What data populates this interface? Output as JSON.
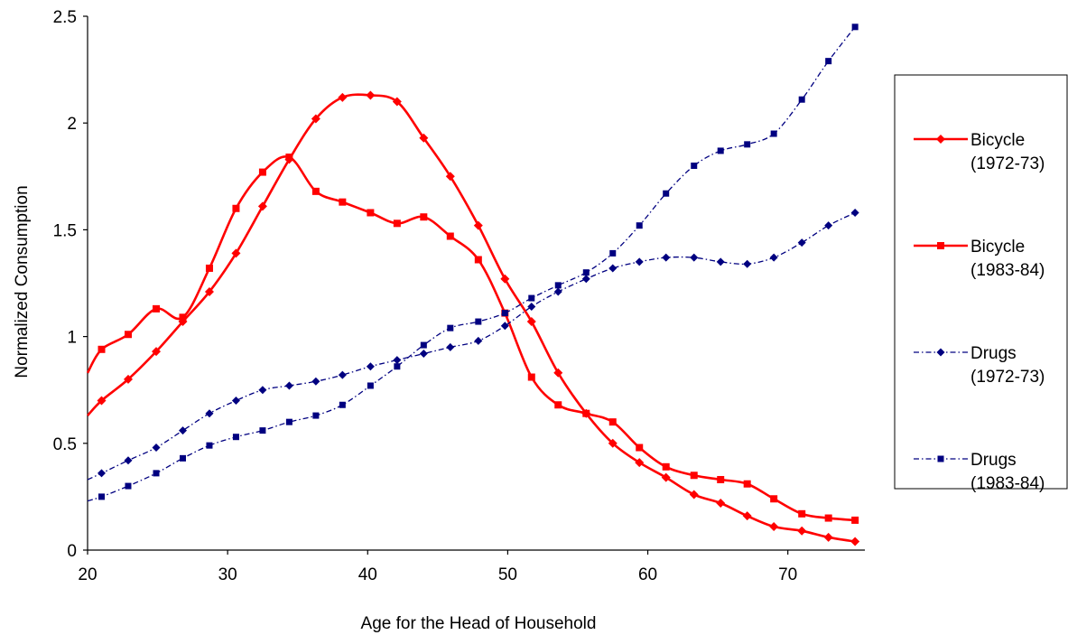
{
  "chart_data": {
    "type": "line",
    "title": "",
    "xlabel": "Age for the Head of Household",
    "ylabel": "Normalized Consumption",
    "xlim": [
      20,
      75.5
    ],
    "ylim": [
      0,
      2.5
    ],
    "x_ticks": [
      20,
      30,
      40,
      50,
      60,
      70
    ],
    "y_ticks": [
      0,
      0.5,
      1,
      1.5,
      2,
      2.5
    ],
    "x_tick_labels": [
      "20",
      "30",
      "40",
      "50",
      "60",
      "70"
    ],
    "y_tick_labels": [
      "0",
      "0.5",
      "1",
      "1.5",
      "2",
      "2.5"
    ],
    "grid": false,
    "legend_position": "right",
    "series": [
      {
        "name": "Bicycle (1972-73)",
        "legend_lines": [
          "Bicycle",
          "(1972-73)"
        ],
        "color": "#ff0000",
        "style": "solid",
        "marker": "diamond",
        "start": [
          20,
          0.63
        ],
        "x": [
          21,
          22.9,
          24.9,
          26.8,
          28.7,
          30.6,
          32.5,
          34.4,
          36.3,
          38.2,
          40.2,
          42.1,
          44,
          45.9,
          47.9,
          49.8,
          51.7,
          53.6,
          55.6,
          57.5,
          59.4,
          61.3,
          63.3,
          65.2,
          67.1,
          69,
          71,
          72.9,
          74.8
        ],
        "y": [
          0.7,
          0.8,
          0.93,
          1.07,
          1.21,
          1.39,
          1.61,
          1.83,
          2.02,
          2.12,
          2.13,
          2.1,
          1.93,
          1.75,
          1.52,
          1.27,
          1.07,
          0.83,
          0.64,
          0.5,
          0.41,
          0.34,
          0.26,
          0.22,
          0.16,
          0.11,
          0.09,
          0.06,
          0.04
        ]
      },
      {
        "name": "Bicycle (1983-84)",
        "legend_lines": [
          "Bicycle",
          "(1983-84)"
        ],
        "color": "#ff0000",
        "style": "solid",
        "marker": "square",
        "start": [
          20,
          0.83
        ],
        "x": [
          21,
          22.9,
          24.9,
          26.8,
          28.7,
          30.6,
          32.5,
          34.4,
          36.3,
          38.2,
          40.2,
          42.1,
          44,
          45.9,
          47.9,
          49.8,
          51.7,
          53.6,
          55.6,
          57.5,
          59.4,
          61.3,
          63.3,
          65.2,
          67.1,
          69,
          71,
          72.9,
          74.8
        ],
        "y": [
          0.94,
          1.01,
          1.13,
          1.09,
          1.32,
          1.6,
          1.77,
          1.84,
          1.68,
          1.63,
          1.58,
          1.53,
          1.56,
          1.47,
          1.36,
          1.11,
          0.81,
          0.68,
          0.64,
          0.6,
          0.48,
          0.39,
          0.35,
          0.33,
          0.31,
          0.24,
          0.17,
          0.15,
          0.14
        ]
      },
      {
        "name": "Drugs (1972-73)",
        "legend_lines": [
          "Drugs",
          "(1972-73)"
        ],
        "color": "#000080",
        "style": "dashdot",
        "marker": "diamond",
        "start": [
          20,
          0.33
        ],
        "x": [
          21,
          22.9,
          24.9,
          26.8,
          28.7,
          30.6,
          32.5,
          34.4,
          36.3,
          38.2,
          40.2,
          42.1,
          44,
          45.9,
          47.9,
          49.8,
          51.7,
          53.6,
          55.6,
          57.5,
          59.4,
          61.3,
          63.3,
          65.2,
          67.1,
          69,
          71,
          72.9,
          74.8
        ],
        "y": [
          0.36,
          0.42,
          0.48,
          0.56,
          0.64,
          0.7,
          0.75,
          0.77,
          0.79,
          0.82,
          0.86,
          0.89,
          0.92,
          0.95,
          0.98,
          1.05,
          1.14,
          1.21,
          1.27,
          1.32,
          1.35,
          1.37,
          1.37,
          1.35,
          1.34,
          1.37,
          1.44,
          1.52,
          1.58
        ]
      },
      {
        "name": "Drugs (1983-84)",
        "legend_lines": [
          "Drugs",
          "(1983-84)"
        ],
        "color": "#000080",
        "style": "dashdot",
        "marker": "square",
        "start": [
          20,
          0.23
        ],
        "x": [
          21,
          22.9,
          24.9,
          26.8,
          28.7,
          30.6,
          32.5,
          34.4,
          36.3,
          38.2,
          40.2,
          42.1,
          44,
          45.9,
          47.9,
          49.8,
          51.7,
          53.6,
          55.6,
          57.5,
          59.4,
          61.3,
          63.3,
          65.2,
          67.1,
          69,
          71,
          72.9,
          74.8
        ],
        "y": [
          0.25,
          0.3,
          0.36,
          0.43,
          0.49,
          0.53,
          0.56,
          0.6,
          0.63,
          0.68,
          0.77,
          0.86,
          0.96,
          1.04,
          1.07,
          1.11,
          1.18,
          1.24,
          1.3,
          1.39,
          1.52,
          1.67,
          1.8,
          1.87,
          1.9,
          1.95,
          2.11,
          2.29,
          2.45
        ]
      }
    ]
  }
}
